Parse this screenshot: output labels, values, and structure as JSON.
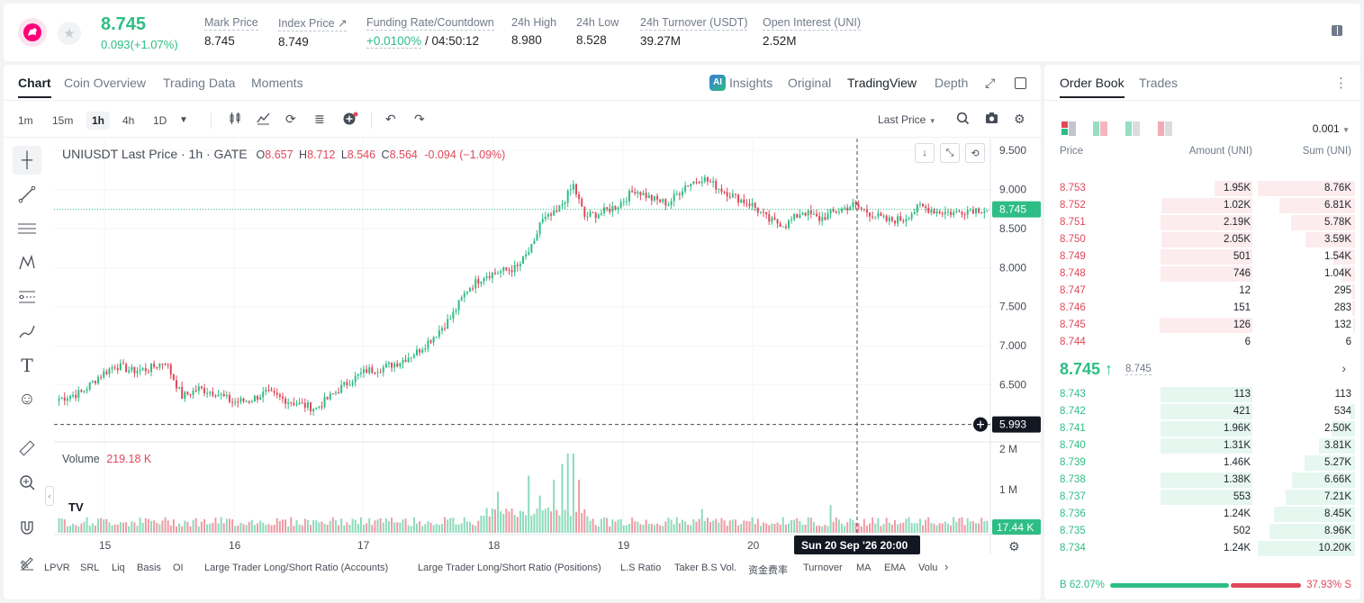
{
  "header": {
    "last_price": "8.745",
    "price_change": "0.093(+1.07%)",
    "stats": [
      {
        "label": "Mark Price",
        "value": "8.745"
      },
      {
        "label": "Index Price ↗",
        "value": "8.749"
      },
      {
        "label": "Funding Rate/Countdown",
        "value_rate": "+0.0100%",
        "value_countdown": "/ 04:50:12"
      },
      {
        "label": "24h High",
        "value": "8.980"
      },
      {
        "label": "24h Low",
        "value": "8.528"
      },
      {
        "label": "24h Turnover (USDT)",
        "value": "39.27M"
      },
      {
        "label": "Open Interest (UNI)",
        "value": "2.52M"
      }
    ]
  },
  "chart_tabs": [
    "Chart",
    "Coin Overview",
    "Trading Data",
    "Moments"
  ],
  "view_tabs": {
    "insights": "Insights",
    "original": "Original",
    "tradingview": "TradingView",
    "depth": "Depth"
  },
  "timeframes": [
    "1m",
    "15m",
    "1h",
    "4h",
    "1D"
  ],
  "price_type": "Last Price",
  "legend": {
    "symbol": "UNIUSDT Last Price · 1h · GATE",
    "o": "8.657",
    "h": "8.712",
    "l": "8.546",
    "c": "8.564",
    "chg": "-0.094 (−1.09%)"
  },
  "volume_legend": {
    "label": "Volume",
    "value": "219.18 K"
  },
  "crosshair": {
    "price_label": "5.993",
    "time_label": "Sun 20 Sep '26   20:00"
  },
  "last_price_tag": "8.745",
  "volume_tag": "17.44 K",
  "indicators": [
    "LPVR",
    "SRL",
    "Liq",
    "Basis",
    "OI",
    "Large Trader Long/Short Ratio (Accounts)",
    "Large Trader Long/Short Ratio (Positions)",
    "L.S Ratio",
    "Taker B.S Vol.",
    "资金费率",
    "Turnover",
    "MA",
    "EMA",
    "Volu"
  ],
  "chart_data": {
    "type": "candlestick",
    "y_ticks": [
      "9.500",
      "9.000",
      "8.500",
      "8.000",
      "7.500",
      "7.000",
      "6.500"
    ],
    "volume_ticks": [
      "2 M",
      "1 M"
    ],
    "x_ticks": [
      "15",
      "16",
      "17",
      "18",
      "19",
      "20"
    ],
    "ylim": [
      6.0,
      9.8
    ],
    "anchors": [
      [
        0,
        6.32
      ],
      [
        8,
        6.4
      ],
      [
        14,
        6.6
      ],
      [
        20,
        6.75
      ],
      [
        26,
        6.68
      ],
      [
        32,
        6.7
      ],
      [
        38,
        6.8
      ],
      [
        44,
        6.35
      ],
      [
        50,
        6.45
      ],
      [
        56,
        6.4
      ],
      [
        62,
        6.28
      ],
      [
        68,
        6.3
      ],
      [
        74,
        6.4
      ],
      [
        80,
        6.32
      ],
      [
        86,
        6.25
      ],
      [
        92,
        6.2
      ],
      [
        98,
        6.38
      ],
      [
        104,
        6.55
      ],
      [
        110,
        6.68
      ],
      [
        116,
        6.72
      ],
      [
        122,
        6.8
      ],
      [
        128,
        6.92
      ],
      [
        134,
        7.12
      ],
      [
        140,
        7.35
      ],
      [
        146,
        7.72
      ],
      [
        152,
        7.9
      ],
      [
        158,
        7.95
      ],
      [
        164,
        8.0
      ],
      [
        170,
        8.3
      ],
      [
        172,
        8.58
      ],
      [
        178,
        8.7
      ],
      [
        184,
        9.05
      ],
      [
        188,
        8.65
      ],
      [
        194,
        8.7
      ],
      [
        200,
        8.8
      ],
      [
        206,
        9.0
      ],
      [
        212,
        8.88
      ],
      [
        218,
        8.82
      ],
      [
        224,
        9.05
      ],
      [
        230,
        9.15
      ],
      [
        236,
        9.02
      ],
      [
        242,
        8.9
      ],
      [
        248,
        8.8
      ],
      [
        254,
        8.6
      ],
      [
        260,
        8.55
      ],
      [
        266,
        8.72
      ],
      [
        272,
        8.62
      ],
      [
        278,
        8.72
      ],
      [
        284,
        8.8
      ],
      [
        290,
        8.7
      ],
      [
        296,
        8.6
      ],
      [
        302,
        8.62
      ],
      [
        308,
        8.78
      ],
      [
        314,
        8.72
      ],
      [
        320,
        8.7
      ],
      [
        326,
        8.75
      ],
      [
        332,
        8.74
      ]
    ],
    "volume_spikes": [
      [
        157,
        0.4
      ],
      [
        168,
        0.6
      ],
      [
        172,
        0.35
      ],
      [
        177,
        0.55
      ],
      [
        180,
        0.75
      ],
      [
        182,
        1.0
      ],
      [
        184,
        0.9
      ],
      [
        186,
        0.55
      ],
      [
        230,
        0.3
      ],
      [
        276,
        0.35
      ],
      [
        320,
        0.2
      ]
    ]
  },
  "order_book": {
    "tabs": [
      "Order Book",
      "Trades"
    ],
    "precision": "0.001",
    "headers": {
      "price": "Price",
      "amount": "Amount (UNI)",
      "sum": "Sum (UNI)"
    },
    "asks": [
      {
        "p": "8.753",
        "a": "1.95K",
        "s": "8.76K",
        "af": 0.38,
        "sf": 1.0
      },
      {
        "p": "8.752",
        "a": "1.02K",
        "s": "6.81K",
        "af": 0.92,
        "sf": 0.78
      },
      {
        "p": "8.751",
        "a": "2.19K",
        "s": "5.78K",
        "af": 0.93,
        "sf": 0.66
      },
      {
        "p": "8.750",
        "a": "2.05K",
        "s": "3.59K",
        "af": 0.92,
        "sf": 0.51
      },
      {
        "p": "8.749",
        "a": "501",
        "s": "1.54K",
        "af": 0.93,
        "sf": 0.22
      },
      {
        "p": "8.748",
        "a": "746",
        "s": "1.04K",
        "af": 0.93,
        "sf": 0.14
      },
      {
        "p": "8.747",
        "a": "12",
        "s": "295",
        "af": 0.0,
        "sf": 0.04
      },
      {
        "p": "8.746",
        "a": "151",
        "s": "283",
        "af": 0.0,
        "sf": 0.03
      },
      {
        "p": "8.745",
        "a": "126",
        "s": "132",
        "af": 0.94,
        "sf": 0.02
      },
      {
        "p": "8.744",
        "a": "6",
        "s": "6",
        "af": 0.0,
        "sf": 0.0
      }
    ],
    "mid_price": "8.745 ↑",
    "mark_price": "8.745",
    "bids": [
      {
        "p": "8.743",
        "a": "113",
        "s": "113",
        "af": 0.93,
        "sf": 0.0
      },
      {
        "p": "8.742",
        "a": "421",
        "s": "534",
        "af": 0.93,
        "sf": 0.05
      },
      {
        "p": "8.741",
        "a": "1.96K",
        "s": "2.50K",
        "af": 0.93,
        "sf": 0.24
      },
      {
        "p": "8.740",
        "a": "1.31K",
        "s": "3.81K",
        "af": 0.93,
        "sf": 0.37
      },
      {
        "p": "8.739",
        "a": "1.46K",
        "s": "5.27K",
        "af": 0.0,
        "sf": 0.52
      },
      {
        "p": "8.738",
        "a": "1.38K",
        "s": "6.66K",
        "af": 0.93,
        "sf": 0.65
      },
      {
        "p": "8.737",
        "a": "553",
        "s": "7.21K",
        "af": 0.93,
        "sf": 0.71
      },
      {
        "p": "8.736",
        "a": "1.24K",
        "s": "8.45K",
        "af": 0.0,
        "sf": 0.83
      },
      {
        "p": "8.735",
        "a": "502",
        "s": "8.96K",
        "af": 0.0,
        "sf": 0.88
      },
      {
        "p": "8.734",
        "a": "1.24K",
        "s": "10.20K",
        "af": 0.0,
        "sf": 1.0
      }
    ],
    "buy_ratio": "B 62.07%",
    "sell_ratio": "37.93% S",
    "buy_fraction": 0.6207
  },
  "colors": {
    "up": "#2ebd85",
    "down": "#e0485a"
  }
}
